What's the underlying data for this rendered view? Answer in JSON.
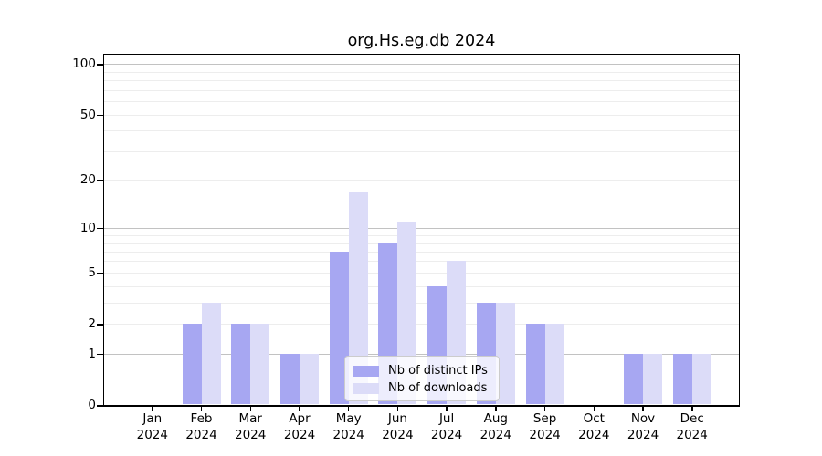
{
  "chart_data": {
    "type": "bar",
    "title": "org.Hs.eg.db 2024",
    "categories": [
      "Jan",
      "Feb",
      "Mar",
      "Apr",
      "May",
      "Jun",
      "Jul",
      "Aug",
      "Sep",
      "Oct",
      "Nov",
      "Dec"
    ],
    "x_tick_year": "2024",
    "series": [
      {
        "name": "Nb of distinct IPs",
        "color": "#a7a7f2",
        "values": [
          0,
          2,
          2,
          1,
          7,
          8,
          4,
          3,
          2,
          0,
          1,
          1
        ]
      },
      {
        "name": "Nb of downloads",
        "color": "#dcdcf8",
        "values": [
          0,
          3,
          2,
          1,
          17,
          11,
          6,
          3,
          2,
          0,
          1,
          1
        ]
      }
    ],
    "y_axis": {
      "scale": "log1p",
      "tick_labels": [
        0,
        1,
        2,
        5,
        10,
        20,
        50,
        100
      ],
      "major_gridlines": [
        1,
        10,
        100
      ],
      "minor_gridlines": [
        2,
        3,
        4,
        5,
        6,
        7,
        8,
        9,
        20,
        30,
        40,
        50,
        60,
        70,
        80,
        90
      ],
      "range": [
        0,
        115
      ]
    },
    "xlabel": "",
    "ylabel": "",
    "grid": "horizontal",
    "legend_position": "bottom-center"
  }
}
